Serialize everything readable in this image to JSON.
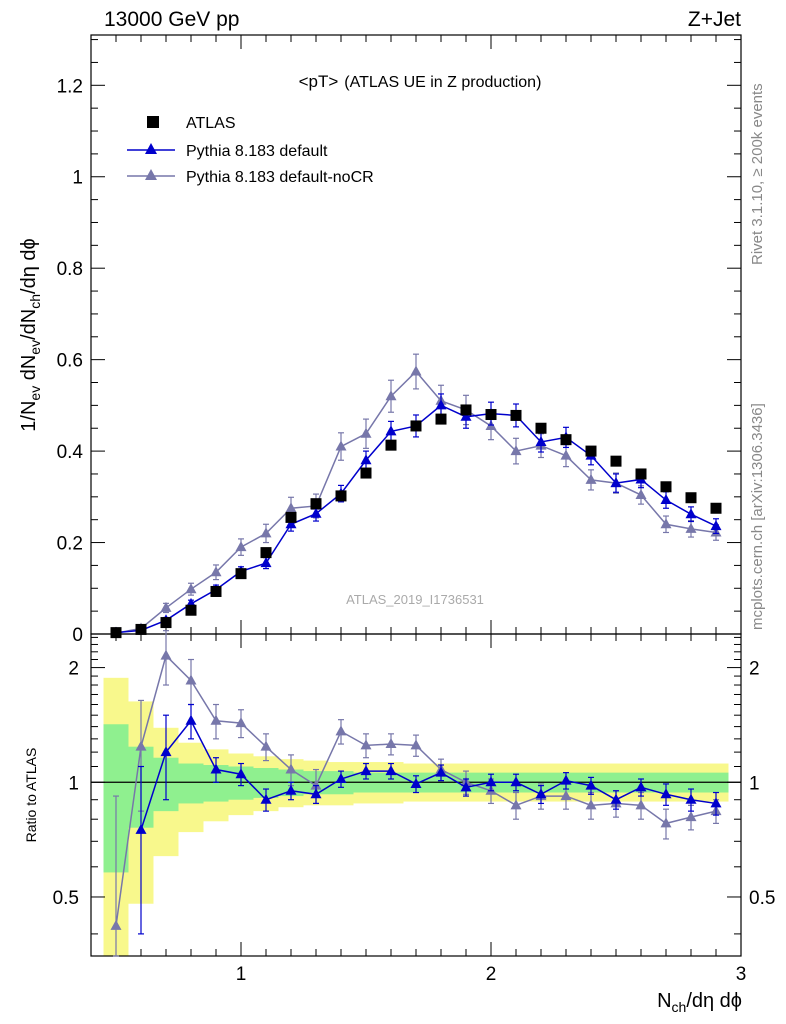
{
  "header": {
    "left": "13000 GeV pp",
    "right": "Z+Jet"
  },
  "side": {
    "rivet": "Rivet 3.1.10, ≥ 200k events",
    "mcplots": "mcplots.cern.ch [arXiv:1306.3436]"
  },
  "watermark": "ATLAS_2019_I1736531",
  "colors": {
    "data": "#000000",
    "default": "#0000cc",
    "nocr": "#7777aa",
    "band_green": "#8ff08f",
    "band_yellow": "#f8f88c"
  },
  "chart_data": [
    {
      "type": "scatter",
      "title": "<pT>",
      "title_suffix": "(ATLAS UE in Z production)",
      "ylabel_main": "1/N",
      "ylabel_sub1": "ev",
      "ylabel_mid": " dN",
      "ylabel_sub2": "ev",
      "ylabel_mid2": "/dN",
      "ylabel_sub3": "ch",
      "ylabel_tail": "/dη dϕ",
      "xlim": [
        0.4,
        3.0
      ],
      "ylim": [
        0,
        1.31
      ],
      "yticks": [
        "0",
        "0.2",
        "0.4",
        "0.6",
        "0.8",
        "1",
        "1.2"
      ],
      "x": [
        0.5,
        0.6,
        0.7,
        0.8,
        0.9,
        1.0,
        1.1,
        1.2,
        1.3,
        1.4,
        1.5,
        1.6,
        1.7,
        1.8,
        1.9,
        2.0,
        2.1,
        2.2,
        2.3,
        2.4,
        2.5,
        2.6,
        2.7,
        2.8,
        2.9
      ],
      "series": [
        {
          "name": "ATLAS",
          "marker": "square",
          "values": [
            0.003,
            0.01,
            0.025,
            0.052,
            0.093,
            0.132,
            0.178,
            0.255,
            0.285,
            0.302,
            0.352,
            0.413,
            0.455,
            0.47,
            0.49,
            0.48,
            0.478,
            0.45,
            0.425,
            0.4,
            0.378,
            0.35,
            0.322,
            0.298,
            0.275
          ]
        },
        {
          "name": "Pythia 8.183 default",
          "marker": "triangle",
          "values": [
            0.003,
            0.008,
            0.03,
            0.066,
            0.097,
            0.137,
            0.155,
            0.24,
            0.263,
            0.307,
            0.38,
            0.443,
            0.455,
            0.5,
            0.475,
            0.482,
            0.478,
            0.42,
            0.43,
            0.39,
            0.33,
            0.338,
            0.293,
            0.262,
            0.236
          ],
          "errors": [
            0.002,
            0.003,
            0.006,
            0.008,
            0.01,
            0.01,
            0.012,
            0.015,
            0.016,
            0.018,
            0.02,
            0.022,
            0.024,
            0.025,
            0.025,
            0.025,
            0.025,
            0.022,
            0.022,
            0.02,
            0.02,
            0.018,
            0.018,
            0.016,
            0.016
          ]
        },
        {
          "name": "Pythia 8.183 default-noCR",
          "marker": "triangle",
          "values": [
            0.002,
            0.012,
            0.057,
            0.098,
            0.135,
            0.19,
            0.22,
            0.275,
            0.28,
            0.41,
            0.438,
            0.52,
            0.574,
            0.51,
            0.49,
            0.455,
            0.4,
            0.412,
            0.39,
            0.337,
            0.33,
            0.304,
            0.24,
            0.23,
            0.222
          ],
          "errors": [
            0.002,
            0.005,
            0.01,
            0.013,
            0.016,
            0.018,
            0.02,
            0.024,
            0.026,
            0.03,
            0.032,
            0.035,
            0.038,
            0.034,
            0.032,
            0.03,
            0.028,
            0.026,
            0.024,
            0.022,
            0.022,
            0.02,
            0.018,
            0.018,
            0.017
          ]
        }
      ]
    },
    {
      "type": "scatter",
      "ylabel": "Ratio to ATLAS",
      "xlabel_main": "N",
      "xlabel_sub": "ch",
      "xlabel_tail": "/dη dϕ",
      "xlim": [
        0.4,
        3.0
      ],
      "ylim": [
        0.35,
        2.45
      ],
      "yscale": "log",
      "xticks": [
        "1",
        "2",
        "3"
      ],
      "yticks": [
        "0.5",
        "1",
        "2"
      ],
      "x": [
        0.5,
        0.6,
        0.7,
        0.8,
        0.9,
        1.0,
        1.1,
        1.2,
        1.3,
        1.4,
        1.5,
        1.6,
        1.7,
        1.8,
        1.9,
        2.0,
        2.1,
        2.2,
        2.3,
        2.4,
        2.5,
        2.6,
        2.7,
        2.8,
        2.9
      ],
      "band_inner": {
        "lo": [
          0.58,
          0.76,
          0.84,
          0.88,
          0.89,
          0.9,
          0.91,
          0.92,
          0.93,
          0.93,
          0.94,
          0.94,
          0.94,
          0.94,
          0.94,
          0.94,
          0.94,
          0.94,
          0.94,
          0.94,
          0.94,
          0.94,
          0.94,
          0.94,
          0.94
        ],
        "hi": [
          1.42,
          1.24,
          1.16,
          1.12,
          1.11,
          1.1,
          1.09,
          1.08,
          1.07,
          1.07,
          1.06,
          1.06,
          1.06,
          1.06,
          1.06,
          1.06,
          1.06,
          1.06,
          1.06,
          1.06,
          1.06,
          1.06,
          1.06,
          1.06,
          1.06
        ]
      },
      "band_outer": {
        "lo": [
          0.35,
          0.48,
          0.64,
          0.74,
          0.79,
          0.82,
          0.84,
          0.86,
          0.87,
          0.87,
          0.88,
          0.88,
          0.89,
          0.89,
          0.89,
          0.89,
          0.89,
          0.89,
          0.89,
          0.89,
          0.89,
          0.89,
          0.89,
          0.89,
          0.89
        ],
        "hi": [
          1.88,
          1.63,
          1.39,
          1.27,
          1.22,
          1.19,
          1.17,
          1.15,
          1.14,
          1.13,
          1.13,
          1.13,
          1.12,
          1.12,
          1.12,
          1.12,
          1.12,
          1.12,
          1.12,
          1.12,
          1.12,
          1.12,
          1.12,
          1.12,
          1.12
        ]
      },
      "series": [
        {
          "name": "Pythia 8.183 default",
          "values": [
            null,
            0.75,
            1.2,
            1.45,
            1.08,
            1.05,
            0.9,
            0.95,
            0.93,
            1.02,
            1.07,
            1.07,
            0.99,
            1.06,
            0.97,
            1.0,
            1.0,
            0.93,
            1.01,
            0.98,
            0.9,
            0.97,
            0.93,
            0.9,
            0.88
          ],
          "errors": [
            null,
            0.35,
            0.3,
            0.15,
            0.08,
            0.07,
            0.06,
            0.05,
            0.05,
            0.05,
            0.05,
            0.05,
            0.05,
            0.05,
            0.05,
            0.05,
            0.05,
            0.05,
            0.05,
            0.05,
            0.05,
            0.05,
            0.06,
            0.06,
            0.06
          ]
        },
        {
          "name": "Pythia 8.183 default-noCR",
          "values": [
            0.42,
            1.24,
            2.15,
            1.85,
            1.45,
            1.43,
            1.24,
            1.08,
            0.98,
            1.36,
            1.25,
            1.26,
            1.25,
            1.08,
            1.0,
            0.95,
            0.87,
            0.92,
            0.92,
            0.87,
            0.88,
            0.87,
            0.78,
            0.81,
            0.84
          ],
          "errors": [
            0.5,
            0.4,
            0.35,
            0.25,
            0.15,
            0.12,
            0.1,
            0.1,
            0.1,
            0.1,
            0.09,
            0.08,
            0.08,
            0.07,
            0.07,
            0.07,
            0.07,
            0.07,
            0.07,
            0.07,
            0.07,
            0.07,
            0.07,
            0.06,
            0.06
          ]
        }
      ]
    }
  ]
}
